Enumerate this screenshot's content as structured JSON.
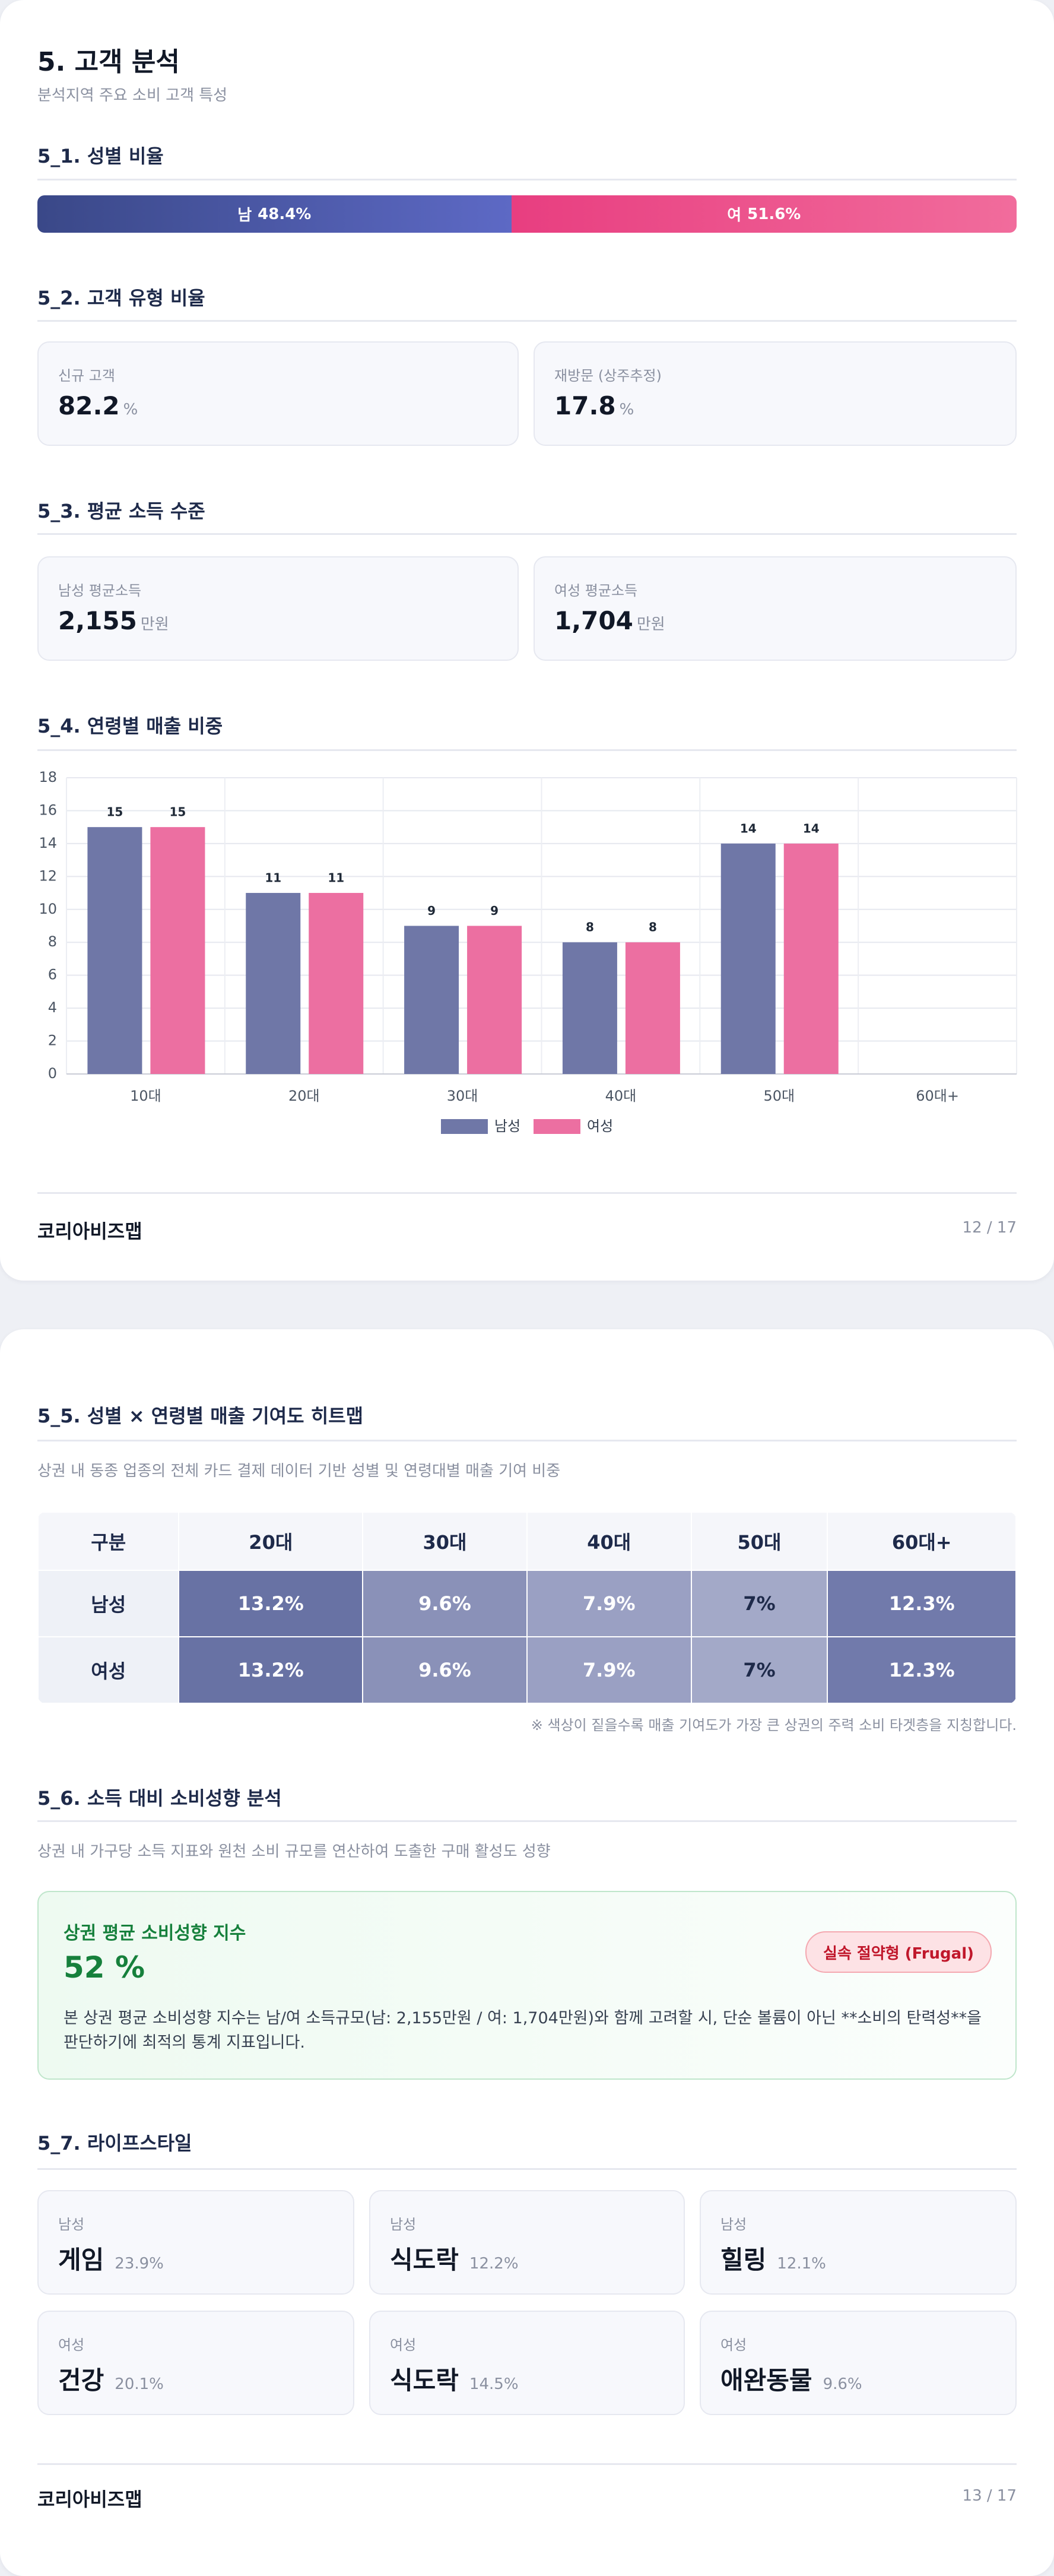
{
  "page1": {
    "title": "5. 고객 분석",
    "subtitle": "분석지역 주요 소비 고객 특성",
    "gender_ratio": {
      "heading": "5_1. 성별 비율",
      "categories": [
        "남",
        "여"
      ],
      "values": [
        48.4,
        51.6
      ],
      "value_labels": [
        "48.4%",
        "51.6%"
      ]
    },
    "customer_type": {
      "heading": "5_2. 고객 유형 비율",
      "cards": [
        {
          "label": "신규 고객",
          "value": "82.2",
          "unit": "%"
        },
        {
          "label": "재방문 (상주추정)",
          "value": "17.8",
          "unit": "%"
        }
      ]
    },
    "income": {
      "heading": "5_3. 평균 소득 수준",
      "cards": [
        {
          "label": "남성 평균소득",
          "value": "2,155",
          "unit": "만원"
        },
        {
          "label": "여성 평균소득",
          "value": "1,704",
          "unit": "만원"
        }
      ]
    },
    "age_sales": {
      "heading": "5_4. 연령별 매출 비중"
    },
    "footer": {
      "brand": "코리아비즈맵",
      "page": "12 / 17"
    }
  },
  "chart_data": {
    "type": "bar",
    "categories": [
      "10대",
      "20대",
      "30대",
      "40대",
      "50대",
      "60대+"
    ],
    "series": [
      {
        "name": "남성",
        "color": "#6f77a7",
        "values": [
          15,
          11,
          9,
          8,
          14,
          null
        ]
      },
      {
        "name": "여성",
        "color": "#ec6fa1",
        "values": [
          15,
          11,
          9,
          8,
          14,
          null
        ]
      }
    ],
    "ylim": [
      0,
      18
    ],
    "yticks": [
      0,
      2,
      4,
      6,
      8,
      10,
      12,
      14,
      16,
      18
    ],
    "grid": true,
    "legend": "bottom"
  },
  "page2": {
    "heatmap": {
      "heading": "5_5. 성별 × 연령별 매출 기여도 히트맵",
      "description": "상권 내 동종 업종의 전체 카드 결제 데이터 기반 성별 및 연령대별 매출 기여 비중",
      "columns": [
        "구분",
        "20대",
        "30대",
        "40대",
        "50대",
        "60대+"
      ],
      "rows": [
        [
          "남성",
          "13.2%",
          "9.6%",
          "7.9%",
          "7%",
          "12.3%"
        ],
        [
          "여성",
          "13.2%",
          "9.6%",
          "7.9%",
          "7%",
          "12.3%"
        ]
      ],
      "note": "※ 색상이 짙을수록 매출 기여도가 가장 큰 상권의 주력 소비 타겟층을 지칭합니다."
    },
    "spending": {
      "heading": "5_6. 소득 대비 소비성향 분석",
      "description": "상권 내 가구당 소득 지표와 원천 소비 규모를 연산하여 도출한 구매 활성도 성향",
      "box_title": "상권 평균 소비성향 지수",
      "value": "52 %",
      "badge": "실속 절약형 (Frugal)",
      "text": "본 상권 평균 소비성향 지수는 남/여 소득규모(남: 2,155만원 / 여: 1,704만원)와 함께 고려할 시, 단순 볼륨이 아닌 **소비의 탄력성**을 판단하기에 최적의 통계 지표입니다."
    },
    "lifestyle": {
      "heading": "5_7. 라이프스타일",
      "cards": [
        {
          "gender": "남성",
          "name": "게임",
          "share": "23.9%"
        },
        {
          "gender": "남성",
          "name": "식도락",
          "share": "12.2%"
        },
        {
          "gender": "남성",
          "name": "힐링",
          "share": "12.1%"
        },
        {
          "gender": "여성",
          "name": "건강",
          "share": "20.1%"
        },
        {
          "gender": "여성",
          "name": "식도락",
          "share": "14.5%"
        },
        {
          "gender": "여성",
          "name": "애완동물",
          "share": "9.6%"
        }
      ]
    },
    "footer": {
      "brand": "코리아비즈맵",
      "page": "13 / 17"
    }
  }
}
